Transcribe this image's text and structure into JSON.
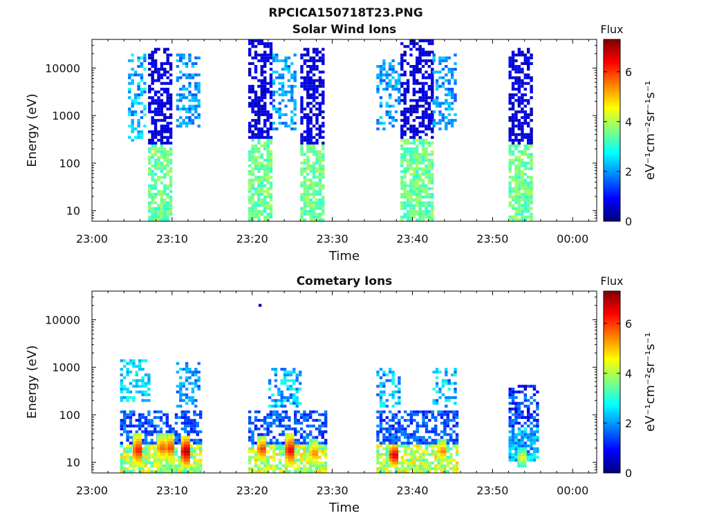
{
  "figure_title": "RPCICA150718T23.PNG",
  "colorbar_colors": [
    "#00007f",
    "#0000ff",
    "#0080ff",
    "#00ffff",
    "#80ff80",
    "#ffff00",
    "#ff8000",
    "#ff0000",
    "#7f0000"
  ],
  "chart_data": [
    {
      "type": "heatmap",
      "title": "Solar Wind Ions",
      "xlabel": "Time",
      "ylabel": "Energy (eV)",
      "x_tick_labels": [
        "23:00",
        "23:10",
        "23:20",
        "23:30",
        "23:40",
        "23:50",
        "00:00"
      ],
      "x_ticks_min": [
        0,
        10,
        20,
        30,
        40,
        50,
        60
      ],
      "xlim_min": [
        0,
        63
      ],
      "y_scale": "log",
      "y_tick_labels": [
        "10",
        "100",
        "1000",
        "10000"
      ],
      "y_ticks": [
        10,
        100,
        1000,
        10000
      ],
      "ylim": [
        6,
        40000
      ],
      "colorbar": {
        "label": "eV⁻¹cm⁻²sr⁻¹s⁻¹",
        "title": "Flux",
        "ticks": [
          0,
          2,
          4,
          6
        ],
        "tick_labels": [
          "0",
          "2",
          "4",
          "6"
        ],
        "range": [
          0,
          7.3
        ]
      },
      "bursts": [
        {
          "t_min": [
            4.5,
            6.5
          ],
          "energy_eV": [
            300,
            20000
          ],
          "flux_low": [
            1.5,
            3
          ]
        },
        {
          "t_min": [
            7.0,
            10.0
          ],
          "energy_eV": [
            6,
            25000
          ],
          "flux_low": [
            3,
            4
          ],
          "flux_high": [
            0.3,
            1
          ]
        },
        {
          "t_min": [
            10.5,
            13.5
          ],
          "energy_eV": [
            600,
            20000
          ],
          "flux_low": [
            1.5,
            2.5
          ]
        },
        {
          "t_min": [
            19.5,
            22.5
          ],
          "energy_eV": [
            6,
            40000
          ],
          "flux_low": [
            3,
            4
          ],
          "flux_high": [
            0.3,
            1
          ]
        },
        {
          "t_min": [
            22.5,
            25.5
          ],
          "energy_eV": [
            500,
            20000
          ],
          "flux_low": [
            1.5,
            2.5
          ]
        },
        {
          "t_min": [
            26.0,
            29.0
          ],
          "energy_eV": [
            6,
            25000
          ],
          "flux_low": [
            3,
            4
          ],
          "flux_high": [
            0.3,
            1
          ]
        },
        {
          "t_min": [
            35.5,
            38.5
          ],
          "energy_eV": [
            500,
            15000
          ],
          "flux_low": [
            1.5,
            2.5
          ]
        },
        {
          "t_min": [
            38.5,
            42.5
          ],
          "energy_eV": [
            6,
            40000
          ],
          "flux_low": [
            3,
            4
          ],
          "flux_high": [
            0.3,
            1
          ]
        },
        {
          "t_min": [
            42.5,
            45.5
          ],
          "energy_eV": [
            500,
            20000
          ],
          "flux_low": [
            1.5,
            2.5
          ]
        },
        {
          "t_min": [
            52.0,
            55.0
          ],
          "energy_eV": [
            6,
            25000
          ],
          "flux_low": [
            3,
            4
          ],
          "flux_high": [
            0.3,
            1
          ]
        }
      ]
    },
    {
      "type": "heatmap",
      "title": "Cometary Ions",
      "xlabel": "Time",
      "ylabel": "Energy (eV)",
      "x_tick_labels": [
        "23:00",
        "23:10",
        "23:20",
        "23:30",
        "23:40",
        "23:50",
        "00:00"
      ],
      "x_ticks_min": [
        0,
        10,
        20,
        30,
        40,
        50,
        60
      ],
      "xlim_min": [
        0,
        63
      ],
      "y_scale": "log",
      "y_tick_labels": [
        "10",
        "100",
        "1000",
        "10000"
      ],
      "y_ticks": [
        10,
        100,
        1000,
        10000
      ],
      "ylim": [
        6,
        40000
      ],
      "colorbar": {
        "label": "eV⁻¹cm⁻²sr⁻¹s⁻¹",
        "title": "Flux",
        "ticks": [
          0,
          2,
          4,
          6
        ],
        "tick_labels": [
          "0",
          "2",
          "4",
          "6"
        ],
        "range": [
          0,
          7.3
        ]
      },
      "bursts": [
        {
          "t_min": [
            3.5,
            13.5
          ],
          "energy_eV": [
            6,
            130
          ],
          "flux_low": [
            3,
            5
          ],
          "flux_high": [
            1,
            2
          ]
        },
        {
          "t_min": [
            3.5,
            7.0
          ],
          "energy_eV": [
            200,
            1500
          ],
          "flux_low": [
            2,
            3
          ]
        },
        {
          "t_min": [
            10.5,
            13.5
          ],
          "energy_eV": [
            150,
            1300
          ],
          "flux_low": [
            1.5,
            2.5
          ]
        },
        {
          "t_min": [
            19.5,
            29.0
          ],
          "energy_eV": [
            6,
            130
          ],
          "flux_low": [
            3,
            5
          ],
          "flux_high": [
            1,
            2
          ]
        },
        {
          "t_min": [
            22.0,
            26.0
          ],
          "energy_eV": [
            150,
            1000
          ],
          "flux_low": [
            1.5,
            3
          ]
        },
        {
          "t_min": [
            35.5,
            45.5
          ],
          "energy_eV": [
            6,
            130
          ],
          "flux_low": [
            3,
            5
          ],
          "flux_high": [
            1,
            2
          ]
        },
        {
          "t_min": [
            35.5,
            38.5
          ],
          "energy_eV": [
            150,
            1000
          ],
          "flux_low": [
            1.5,
            3
          ]
        },
        {
          "t_min": [
            42.5,
            45.5
          ],
          "energy_eV": [
            150,
            1000
          ],
          "flux_low": [
            1.5,
            3
          ]
        },
        {
          "t_min": [
            52.0,
            55.5
          ],
          "energy_eV": [
            10,
            400
          ],
          "flux_low": [
            1.5,
            3
          ],
          "flux_high": [
            0.5,
            2
          ]
        }
      ],
      "hot_columns": [
        {
          "t_min": 5.5,
          "energy_eV": [
            8,
            40
          ],
          "flux": 6.3
        },
        {
          "t_min": 8.5,
          "energy_eV": [
            10,
            40
          ],
          "flux": 5.8
        },
        {
          "t_min": 9.5,
          "energy_eV": [
            10,
            40
          ],
          "flux": 6.0
        },
        {
          "t_min": 11.5,
          "energy_eV": [
            8,
            35
          ],
          "flux": 7.0
        },
        {
          "t_min": 21.0,
          "energy_eV": [
            10,
            35
          ],
          "flux": 6.0
        },
        {
          "t_min": 24.5,
          "energy_eV": [
            8,
            40
          ],
          "flux": 6.5
        },
        {
          "t_min": 27.5,
          "energy_eV": [
            8,
            30
          ],
          "flux": 5.5
        },
        {
          "t_min": 37.5,
          "energy_eV": [
            8,
            25
          ],
          "flux": 6.8
        },
        {
          "t_min": 43.5,
          "energy_eV": [
            10,
            30
          ],
          "flux": 5.5
        },
        {
          "t_min": 53.5,
          "energy_eV": [
            8,
            20
          ],
          "flux": 4.5
        }
      ],
      "isolated_points": [
        {
          "t_min": 20.8,
          "energy_eV": 20000,
          "flux": 0.5
        }
      ]
    }
  ]
}
